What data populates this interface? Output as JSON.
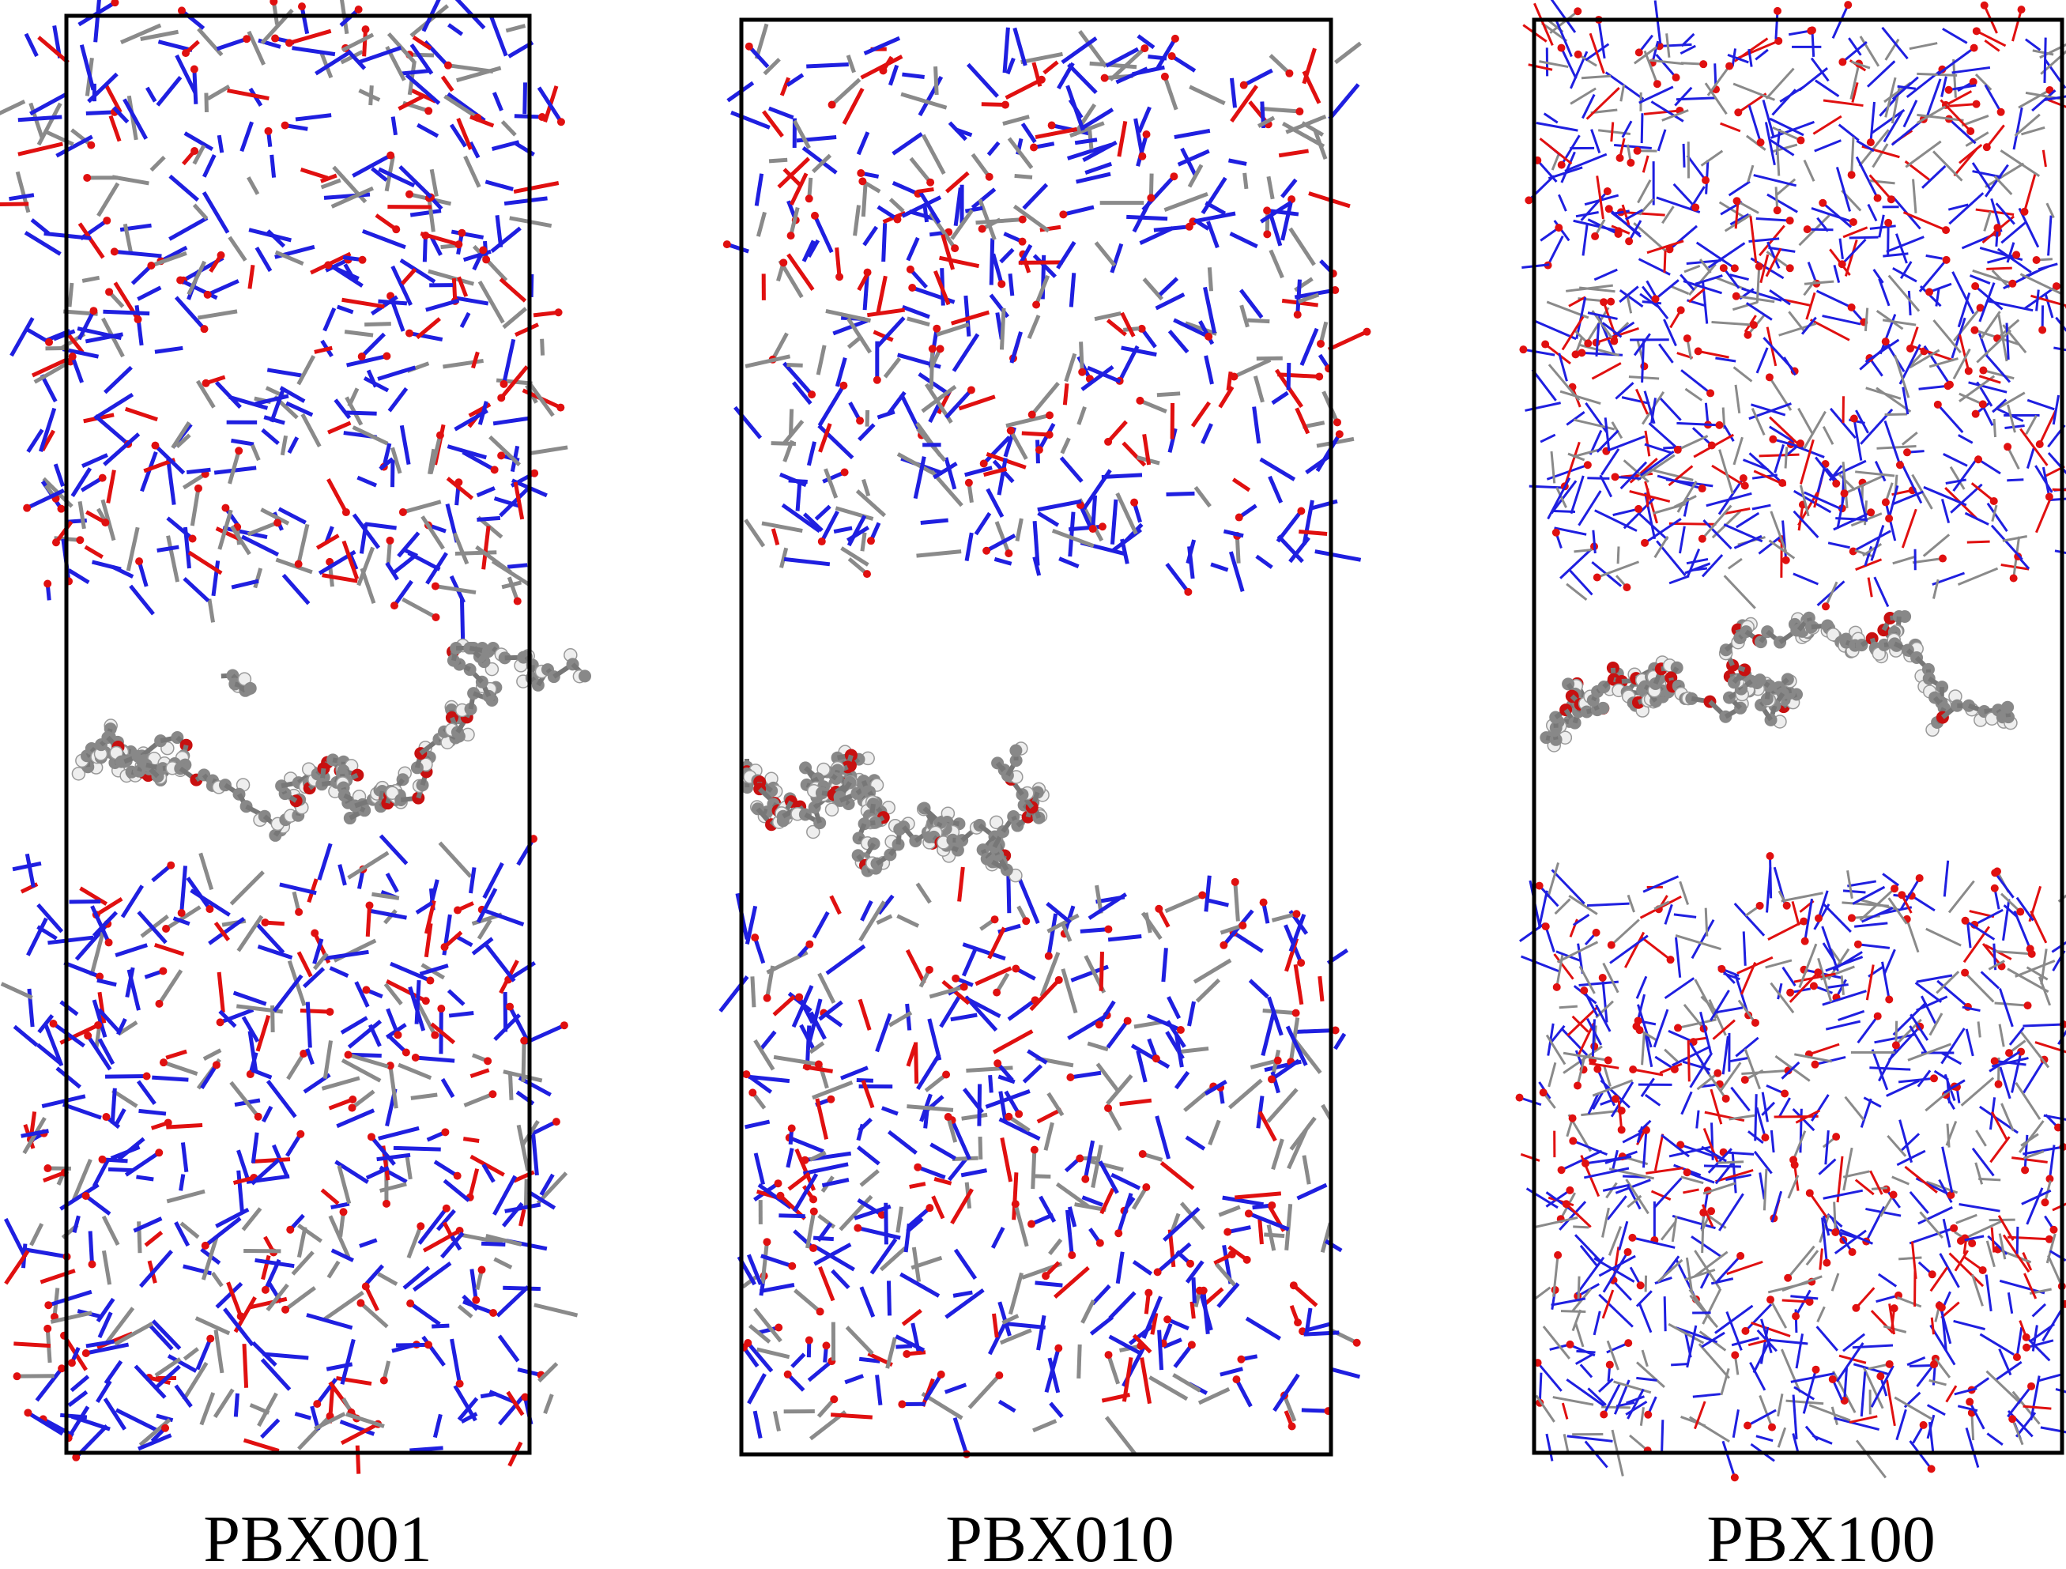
{
  "panels": [
    {
      "label": "PBX001"
    },
    {
      "label": "PBX010"
    },
    {
      "label": "PBX100"
    }
  ]
}
